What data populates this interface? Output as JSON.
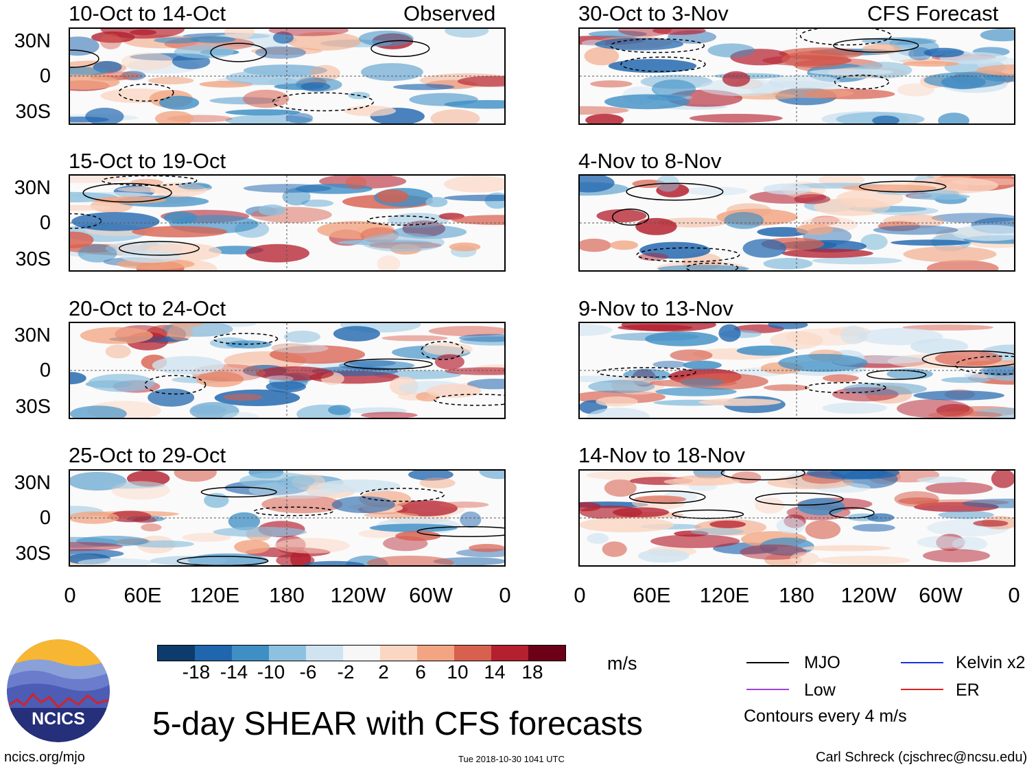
{
  "panel_headers": {
    "observed": "Observed",
    "forecast": "CFS Forecast"
  },
  "panels": [
    {
      "title": "10-Oct to 14-Oct",
      "group": "observed"
    },
    {
      "title": "15-Oct to 19-Oct",
      "group": "observed"
    },
    {
      "title": "20-Oct to 24-Oct",
      "group": "observed"
    },
    {
      "title": "25-Oct to 29-Oct",
      "group": "observed"
    },
    {
      "title": "30-Oct to 3-Nov",
      "group": "forecast"
    },
    {
      "title": "4-Nov to 8-Nov",
      "group": "forecast"
    },
    {
      "title": "9-Nov to 13-Nov",
      "group": "forecast"
    },
    {
      "title": "14-Nov to 18-Nov",
      "group": "forecast"
    }
  ],
  "lat_labels": [
    "30N",
    "0",
    "30S"
  ],
  "lon_labels": [
    "0",
    "60E",
    "120E",
    "180",
    "120W",
    "60W",
    "0"
  ],
  "colorbar": {
    "labels": [
      "-18",
      "-14",
      "-10",
      "-6",
      "-2",
      "2",
      "6",
      "10",
      "14",
      "18"
    ],
    "colors": [
      "#0d3b6b",
      "#2066ae",
      "#3f8fc5",
      "#8ec1df",
      "#cfe3f0",
      "#f7f7f7",
      "#fbd6c3",
      "#f2a582",
      "#d8604f",
      "#b4202f",
      "#6c0016"
    ],
    "unit": "m/s"
  },
  "title": "5-day SHEAR with CFS forecasts",
  "legend": {
    "items": [
      {
        "label": "MJO",
        "color": "#000000"
      },
      {
        "label": "Low",
        "color": "#a040e0"
      },
      {
        "label": "Kelvin x2",
        "color": "#1a30e0"
      },
      {
        "label": "ER",
        "color": "#e02020"
      }
    ],
    "note": "Contours every 4 m/s"
  },
  "footer": {
    "left": "ncics.org/mjo",
    "center": "Tue 2018-10-30 1041 UTC",
    "right": "Carl Schreck (cjschrec@ncsu.edu)"
  },
  "logo": {
    "text": "NCICS",
    "colors": {
      "sky": "#f7b733",
      "mountain": "#5a63b5",
      "bg": "#252f7a"
    }
  }
}
